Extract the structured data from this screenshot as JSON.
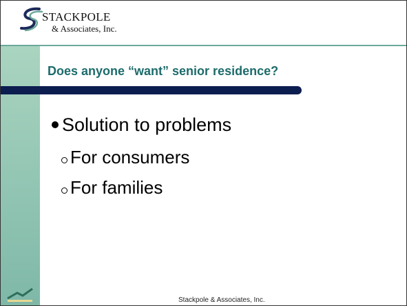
{
  "header": {
    "logo_line1": "STACKPOLE",
    "logo_line2": "& Associates, Inc."
  },
  "title": "Does anyone “want” senior residence?",
  "bullets": [
    {
      "level": 1,
      "text": "Solution to problems"
    },
    {
      "level": 2,
      "text": "For consumers"
    },
    {
      "level": 2,
      "text": "For families"
    }
  ],
  "footer": "Stackpole & Associates, Inc."
}
